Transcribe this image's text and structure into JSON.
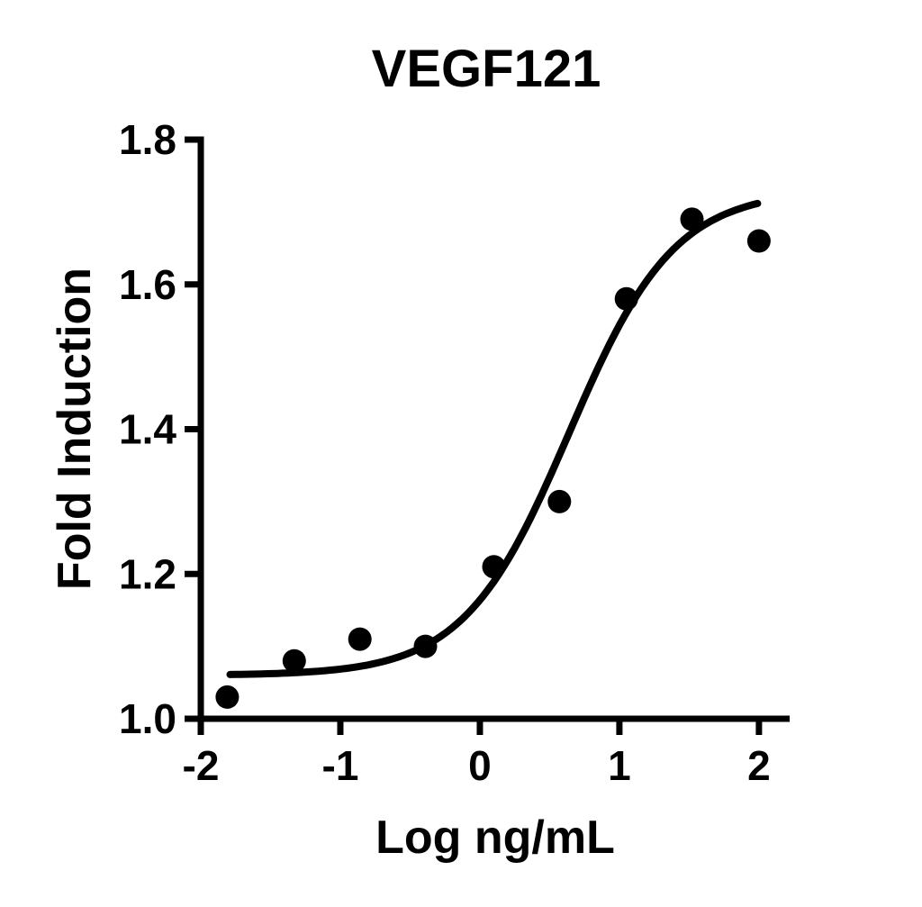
{
  "page": {
    "background_color": "#ffffff",
    "ink_color": "#000000"
  },
  "chart_data": {
    "type": "scatter",
    "title": "VEGF121",
    "xlabel": "Log ng/mL",
    "ylabel": "Fold Induction",
    "xlim": [
      -2,
      2.22
    ],
    "ylim": [
      1.0,
      1.8
    ],
    "x_ticks": [
      -2,
      -1,
      0,
      1,
      2
    ],
    "x_tick_labels": [
      "-2",
      "-1",
      "0",
      "1",
      "2"
    ],
    "y_ticks": [
      1.0,
      1.2,
      1.4,
      1.6,
      1.8
    ],
    "y_tick_labels": [
      "1.0",
      "1.2",
      "1.4",
      "1.6",
      "1.8"
    ],
    "grid": false,
    "legend": "none",
    "marker_color": "#000000",
    "line_color": "#000000",
    "series": [
      {
        "name": "VEGF121 response points",
        "type": "scatter",
        "marker": "filled-circle",
        "points": [
          {
            "x": -1.81,
            "y": 1.03
          },
          {
            "x": -1.33,
            "y": 1.08
          },
          {
            "x": -0.86,
            "y": 1.11
          },
          {
            "x": -0.39,
            "y": 1.1
          },
          {
            "x": 0.1,
            "y": 1.21
          },
          {
            "x": 0.57,
            "y": 1.3
          },
          {
            "x": 1.05,
            "y": 1.58
          },
          {
            "x": 1.52,
            "y": 1.69
          },
          {
            "x": 2.0,
            "y": 1.66
          }
        ]
      },
      {
        "name": "sigmoidal fit curve",
        "type": "line",
        "fit": {
          "model": "4PL",
          "bottom": 1.06,
          "top": 1.73,
          "log_ec50": 0.64,
          "hill": 1.15,
          "x_start": -1.79,
          "x_end": 1.99
        }
      }
    ]
  }
}
